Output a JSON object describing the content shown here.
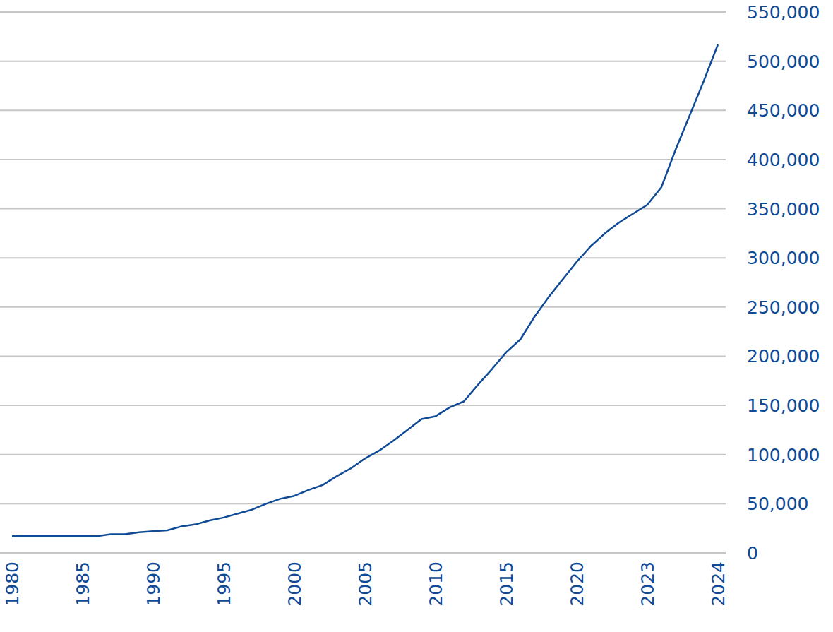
{
  "chart_data": {
    "type": "line",
    "categories": [
      "1980",
      null,
      null,
      null,
      null,
      "1985",
      null,
      null,
      null,
      null,
      "1990",
      null,
      null,
      null,
      null,
      "1995",
      null,
      null,
      null,
      null,
      "2000",
      null,
      null,
      null,
      null,
      "2005",
      null,
      null,
      null,
      null,
      "2010",
      null,
      null,
      null,
      null,
      "2015",
      null,
      null,
      null,
      null,
      "2020",
      null,
      null,
      null,
      null,
      "2023",
      null,
      null,
      null,
      null,
      "2024"
    ],
    "values": [
      17000,
      17000,
      17000,
      17000,
      17000,
      17000,
      17000,
      19000,
      19000,
      21000,
      22000,
      23000,
      27000,
      29000,
      33000,
      36000,
      40000,
      44000,
      50000,
      55000,
      58000,
      64000,
      69000,
      78000,
      86000,
      96000,
      104000,
      114000,
      125000,
      136000,
      139000,
      148000,
      154000,
      171000,
      187000,
      204000,
      217000,
      240000,
      260000,
      278000,
      296000,
      312000,
      325000,
      336000,
      345000,
      354000,
      372000,
      410000,
      445000,
      480000,
      517000
    ],
    "color": "#0e4a96",
    "ylim": [
      0,
      550000
    ],
    "yticks": [
      0,
      {
        "value": 50000,
        "label": "50,000"
      },
      {
        "value": 100000,
        "label": "100,000"
      },
      {
        "value": 150000,
        "label": "150,000"
      },
      {
        "value": 200000,
        "label": "200,000"
      },
      {
        "value": 250000,
        "label": "250,000"
      },
      {
        "value": 300000,
        "label": "300,000"
      },
      {
        "value": 350000,
        "label": "350,000"
      },
      {
        "value": 400000,
        "label": "400,000"
      },
      {
        "value": 450000,
        "label": "450,000"
      },
      {
        "value": 500000,
        "label": "500,000"
      },
      {
        "value": 550000,
        "label": "550,000"
      }
    ],
    "grid": true
  }
}
